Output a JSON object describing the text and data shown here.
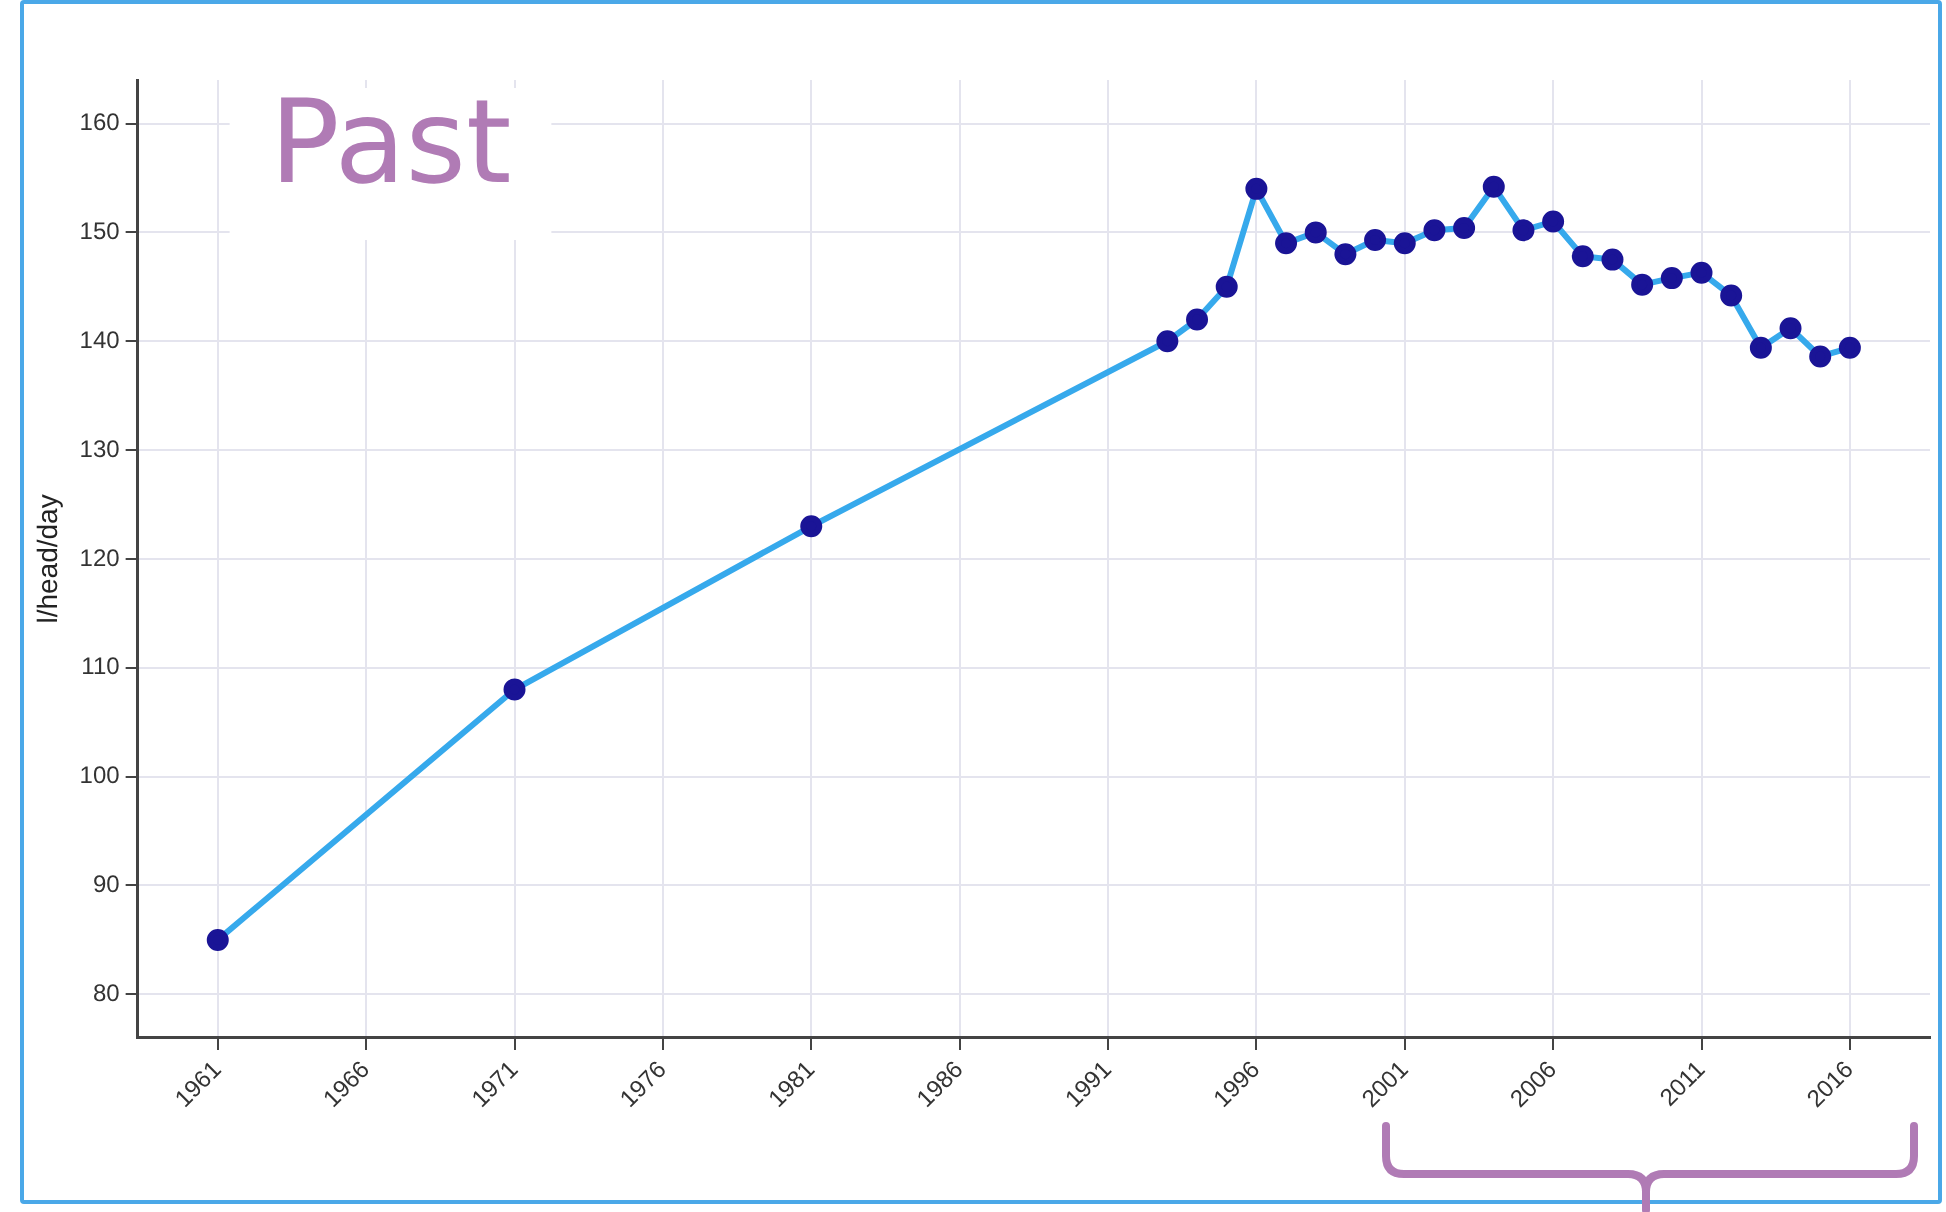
{
  "chart_data": {
    "type": "line",
    "ylabel": "l/head/day",
    "annotations": [
      "Past"
    ],
    "x": [
      1961,
      1971,
      1981,
      1993,
      1994,
      1995,
      1996,
      1997,
      1998,
      1999,
      2000,
      2001,
      2002,
      2003,
      2004,
      2005,
      2006,
      2007,
      2008,
      2009,
      2010,
      2011,
      2012,
      2013,
      2014,
      2015,
      2016
    ],
    "series": [
      {
        "color": "#36a9ec",
        "values": [
          85,
          108,
          123,
          140,
          142,
          145,
          154,
          149,
          150,
          148,
          149.3,
          149,
          150.2,
          150.4,
          154.2,
          150.2,
          151,
          147.8,
          147.5,
          145.2,
          145.8,
          146.3,
          144.2,
          139.4,
          141.2,
          138.6,
          139.4
        ]
      }
    ],
    "xlim": [
      1958.3,
      2018.7
    ],
    "xticks": [
      1961,
      1966,
      1971,
      1976,
      1981,
      1986,
      1991,
      1996,
      2001,
      2006,
      2011,
      2016
    ],
    "ylim": [
      76,
      164
    ],
    "yticks": [
      80,
      90,
      100,
      110,
      120,
      130,
      140,
      150,
      160
    ],
    "grid": true,
    "legend": false,
    "marker": "circle",
    "line_style": "solid"
  }
}
